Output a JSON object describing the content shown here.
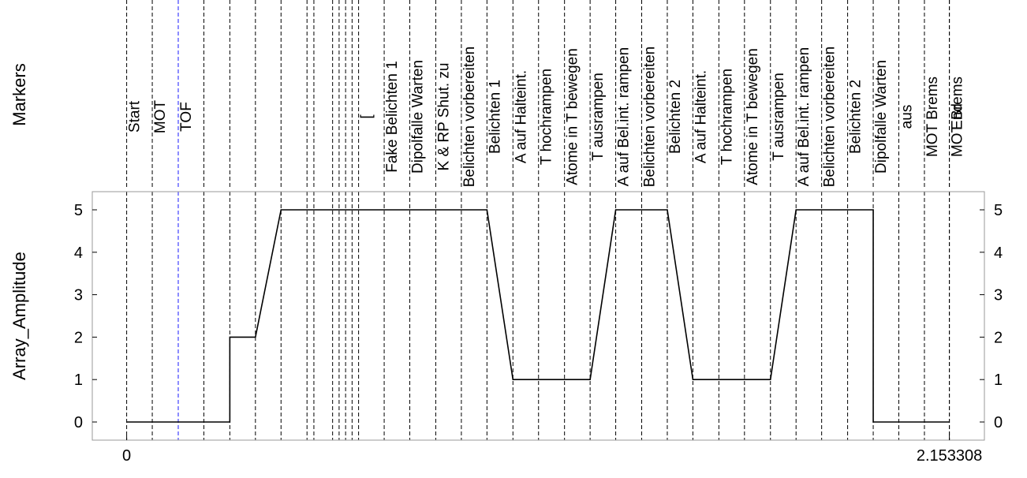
{
  "chart_data": {
    "type": "line",
    "marker_axis_label": "Markers",
    "ylabel": "Array_Amplitude",
    "xlabel": "",
    "ylim": [
      0,
      5
    ],
    "yticks": [
      0,
      1,
      2,
      3,
      4,
      5
    ],
    "xticks": [
      {
        "value": 0,
        "label": "0"
      },
      {
        "value": 2.153308,
        "label": "2.153308"
      }
    ],
    "xlim": [
      -0.09,
      2.245
    ],
    "grid": "vertical dashed marker lines",
    "line_color": "#000000",
    "highlight_color": "#1a1aff",
    "markers": [
      {
        "t": 0.0,
        "label": "Start"
      },
      {
        "t": 0.067,
        "label": "MOT"
      },
      {
        "t": 0.135,
        "label": "TOF",
        "highlight": true
      },
      {
        "t": 0.202,
        "label": ""
      },
      {
        "t": 0.27,
        "label": ""
      },
      {
        "t": 0.337,
        "label": ""
      },
      {
        "t": 0.404,
        "label": ""
      },
      {
        "t": 0.472,
        "label": ""
      },
      {
        "t": 0.49,
        "label": ""
      },
      {
        "t": 0.539,
        "label": ""
      },
      {
        "t": 0.556,
        "label": ""
      },
      {
        "t": 0.573,
        "label": ""
      },
      {
        "t": 0.59,
        "label": ""
      },
      {
        "t": 0.607,
        "label": "["
      },
      {
        "t": 0.674,
        "label": "Fake Belichten 1"
      },
      {
        "t": 0.741,
        "label": "Dipolfalle Warten"
      },
      {
        "t": 0.809,
        "label": "K & RP Shut. zu"
      },
      {
        "t": 0.876,
        "label": "Belichten vorbereiten"
      },
      {
        "t": 0.943,
        "label": "Belichten 1"
      },
      {
        "t": 1.011,
        "label": "A auf Halteint."
      },
      {
        "t": 1.078,
        "label": "T hochrampen"
      },
      {
        "t": 1.146,
        "label": "Atome in T bewegen"
      },
      {
        "t": 1.213,
        "label": "T ausrampen"
      },
      {
        "t": 1.28,
        "label": "A auf Bel.int. rampen"
      },
      {
        "t": 1.348,
        "label": "Belichten vorbereiten"
      },
      {
        "t": 1.415,
        "label": "Belichten 2"
      },
      {
        "t": 1.482,
        "label": "A auf Halteint."
      },
      {
        "t": 1.55,
        "label": "T hochrampen"
      },
      {
        "t": 1.617,
        "label": "Atome in T bewegen"
      },
      {
        "t": 1.685,
        "label": "T ausrampen"
      },
      {
        "t": 1.752,
        "label": "A auf Bel.int. rampen"
      },
      {
        "t": 1.819,
        "label": "Belichten vorbereiten"
      },
      {
        "t": 1.887,
        "label": "Belichten 2"
      },
      {
        "t": 1.954,
        "label": "Dipolfalle Warten"
      },
      {
        "t": 2.021,
        "label": "aus"
      },
      {
        "t": 2.088,
        "label": "MOT Brems"
      },
      {
        "t": 2.153308,
        "label": "MOT Brems"
      },
      {
        "t": 2.153308,
        "label": "End"
      }
    ],
    "series": [
      {
        "x": [
          0.0,
          0.27,
          0.27,
          0.337,
          0.404,
          0.943,
          1.011,
          1.213,
          1.28,
          1.415,
          1.482,
          1.685,
          1.752,
          1.954,
          1.954,
          2.153308
        ],
        "y": [
          0,
          0,
          2,
          2,
          5,
          5,
          1,
          1,
          5,
          5,
          1,
          1,
          5,
          5,
          0,
          0
        ]
      }
    ]
  }
}
